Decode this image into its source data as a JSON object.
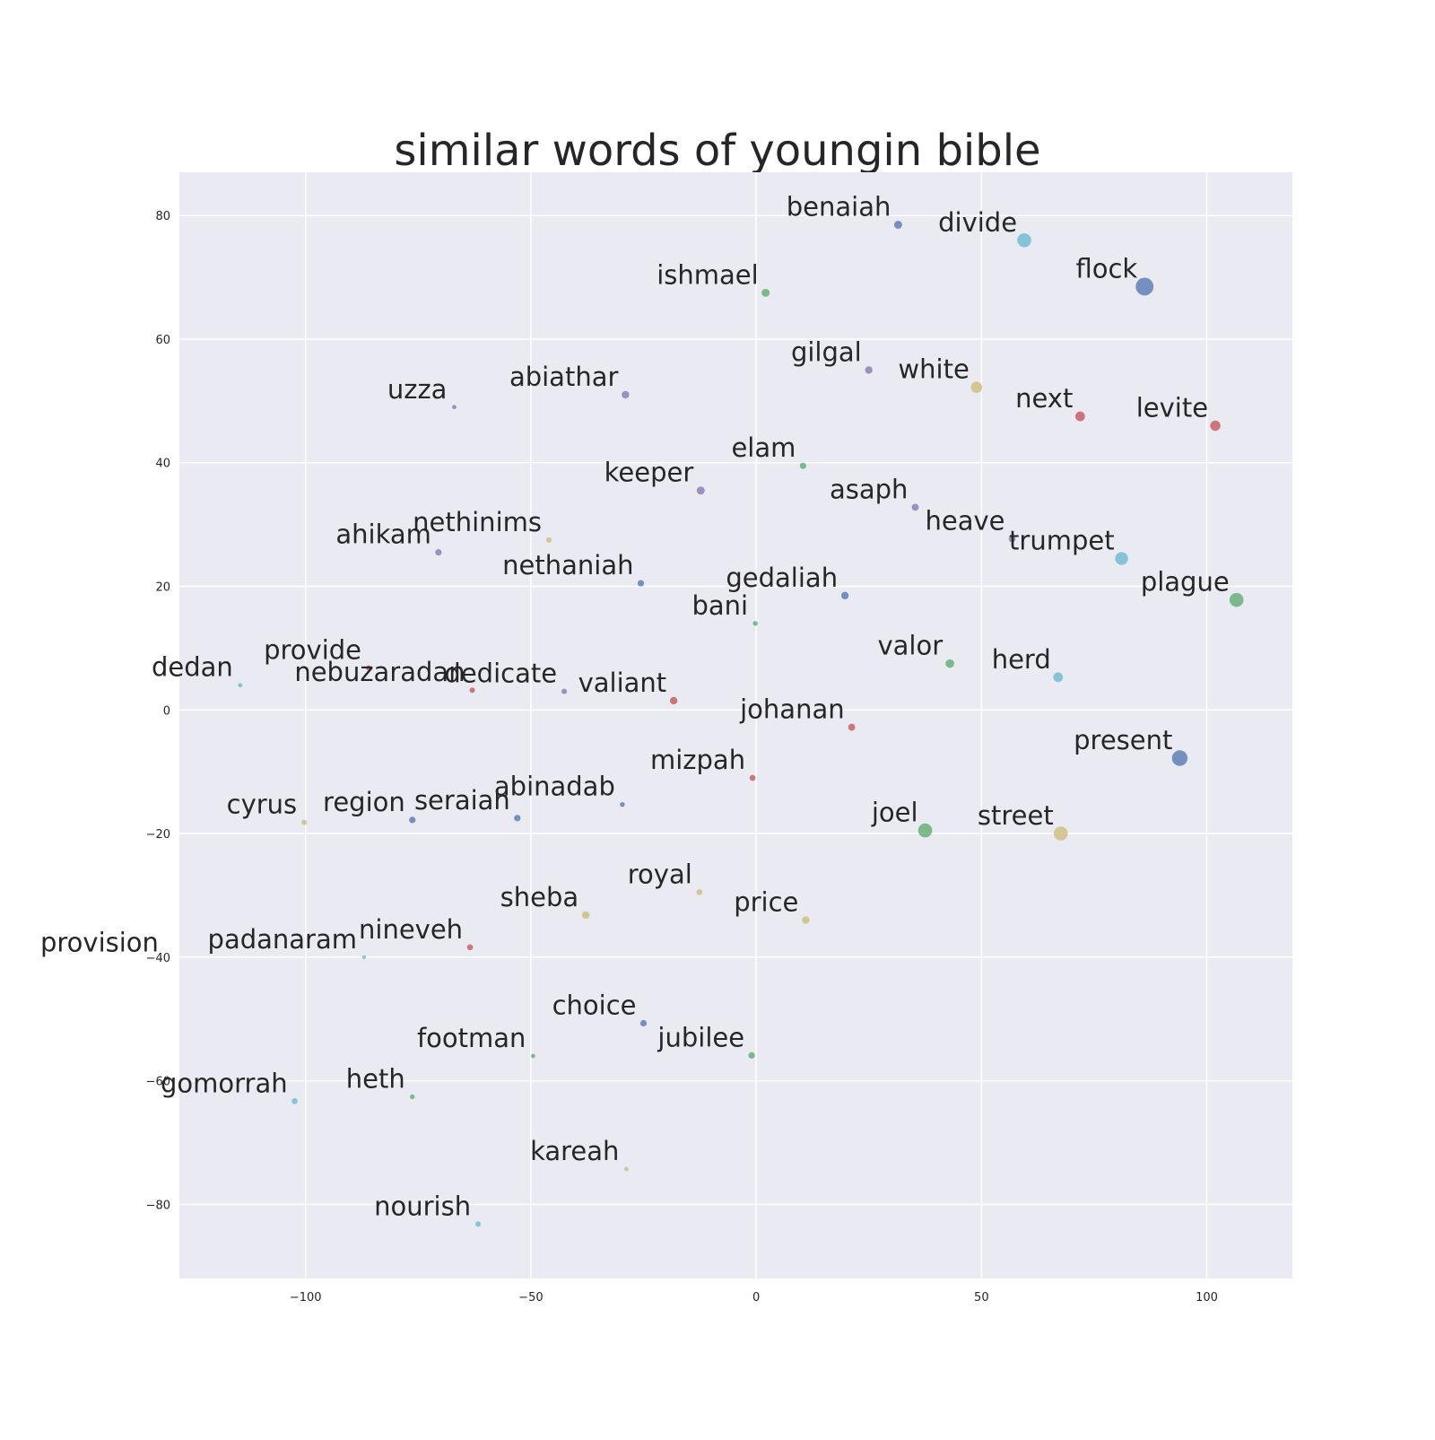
{
  "chart_data": {
    "type": "scatter",
    "title": "similar words of youngin bible",
    "xlabel": "",
    "ylabel": "",
    "xlim": [
      -128,
      119
    ],
    "ylim": [
      -92,
      87
    ],
    "xticks": [
      -100,
      -50,
      0,
      50,
      100
    ],
    "yticks": [
      80,
      60,
      40,
      20,
      0,
      -20,
      -40,
      -60,
      -80
    ],
    "grid": true,
    "background": "#EAEAF2",
    "palette": {
      "blue": "#4C72B0",
      "green": "#55A868",
      "red": "#C44E52",
      "purple": "#8172B2",
      "yellow": "#CCB974",
      "cyan": "#64B5CD"
    },
    "points": [
      {
        "word": "benaiah",
        "x": 31.5,
        "y": 78.5,
        "color": "blue",
        "size": 1.5
      },
      {
        "word": "divide",
        "x": 59.5,
        "y": 76.0,
        "color": "cyan",
        "size": 2.6
      },
      {
        "word": "flock",
        "x": 86.2,
        "y": 68.5,
        "color": "blue",
        "size": 3.3
      },
      {
        "word": "ishmael",
        "x": 2.1,
        "y": 67.5,
        "color": "green",
        "size": 1.5
      },
      {
        "word": "gilgal",
        "x": 25.0,
        "y": 55.0,
        "color": "purple",
        "size": 1.4
      },
      {
        "word": "white",
        "x": 48.9,
        "y": 52.2,
        "color": "yellow",
        "size": 2.1
      },
      {
        "word": "uzza",
        "x": -67.0,
        "y": 49.0,
        "color": "purple",
        "size": 0.8
      },
      {
        "word": "abiathar",
        "x": -29.0,
        "y": 51.0,
        "color": "purple",
        "size": 1.4
      },
      {
        "word": "next",
        "x": 71.9,
        "y": 47.5,
        "color": "red",
        "size": 1.8
      },
      {
        "word": "levite",
        "x": 101.9,
        "y": 46.0,
        "color": "red",
        "size": 1.9
      },
      {
        "word": "elam",
        "x": 10.4,
        "y": 39.5,
        "color": "green",
        "size": 1.2
      },
      {
        "word": "keeper",
        "x": -12.3,
        "y": 35.5,
        "color": "purple",
        "size": 1.5
      },
      {
        "word": "asaph",
        "x": 35.3,
        "y": 32.8,
        "color": "purple",
        "size": 1.3
      },
      {
        "word": "nethinims",
        "x": -46.0,
        "y": 27.5,
        "color": "yellow",
        "size": 1.0
      },
      {
        "word": "heave",
        "x": 56.8,
        "y": 27.7,
        "color": "purple",
        "size": 1.3
      },
      {
        "word": "ahikam",
        "x": -70.5,
        "y": 25.5,
        "color": "purple",
        "size": 1.2
      },
      {
        "word": "trumpet",
        "x": 81.1,
        "y": 24.5,
        "color": "cyan",
        "size": 2.4
      },
      {
        "word": "nethaniah",
        "x": -25.6,
        "y": 20.5,
        "color": "blue",
        "size": 1.2
      },
      {
        "word": "gedaliah",
        "x": 19.7,
        "y": 18.5,
        "color": "blue",
        "size": 1.4
      },
      {
        "word": "plague",
        "x": 106.6,
        "y": 17.8,
        "color": "green",
        "size": 2.6
      },
      {
        "word": "bani",
        "x": -0.2,
        "y": 14.0,
        "color": "green",
        "size": 0.9
      },
      {
        "word": "valor",
        "x": 43.0,
        "y": 7.5,
        "color": "green",
        "size": 1.6
      },
      {
        "word": "herd",
        "x": 67.0,
        "y": 5.3,
        "color": "cyan",
        "size": 1.8
      },
      {
        "word": "provide",
        "x": -86.0,
        "y": 6.8,
        "color": "red",
        "size": 1.0
      },
      {
        "word": "dedan",
        "x": -114.5,
        "y": 4.0,
        "color": "cyan",
        "size": 0.8
      },
      {
        "word": "nebuzaradan",
        "x": -63.0,
        "y": 3.2,
        "color": "red",
        "size": 1.0
      },
      {
        "word": "dedicate",
        "x": -42.6,
        "y": 3.0,
        "color": "purple",
        "size": 1.0
      },
      {
        "word": "valiant",
        "x": -18.3,
        "y": 1.5,
        "color": "red",
        "size": 1.4
      },
      {
        "word": "johanan",
        "x": 21.2,
        "y": -2.8,
        "color": "red",
        "size": 1.3
      },
      {
        "word": "present",
        "x": 94.0,
        "y": -7.8,
        "color": "blue",
        "size": 2.9
      },
      {
        "word": "mizpah",
        "x": -0.8,
        "y": -11.0,
        "color": "red",
        "size": 1.1
      },
      {
        "word": "abinadab",
        "x": -29.7,
        "y": -15.3,
        "color": "blue",
        "size": 0.9
      },
      {
        "word": "cyrus",
        "x": -100.3,
        "y": -18.2,
        "color": "yellow",
        "size": 1.0
      },
      {
        "word": "region",
        "x": -76.3,
        "y": -17.8,
        "color": "blue",
        "size": 1.2
      },
      {
        "word": "seraiah",
        "x": -53.0,
        "y": -17.5,
        "color": "blue",
        "size": 1.2
      },
      {
        "word": "joel",
        "x": 37.5,
        "y": -19.5,
        "color": "green",
        "size": 2.6
      },
      {
        "word": "street",
        "x": 67.6,
        "y": -20.0,
        "color": "yellow",
        "size": 2.6
      },
      {
        "word": "royal",
        "x": -12.6,
        "y": -29.5,
        "color": "yellow",
        "size": 1.1
      },
      {
        "word": "sheba",
        "x": -37.8,
        "y": -33.2,
        "color": "yellow",
        "size": 1.4
      },
      {
        "word": "price",
        "x": 11.0,
        "y": -34.0,
        "color": "yellow",
        "size": 1.4
      },
      {
        "word": "provision",
        "x": -131.0,
        "y": -40.5,
        "color": "yellow",
        "size": 0.0
      },
      {
        "word": "padanaram",
        "x": -87.0,
        "y": -40.0,
        "color": "cyan",
        "size": 0.7
      },
      {
        "word": "nineveh",
        "x": -63.5,
        "y": -38.4,
        "color": "red",
        "size": 1.1
      },
      {
        "word": "choice",
        "x": -25.0,
        "y": -50.7,
        "color": "blue",
        "size": 1.2
      },
      {
        "word": "footman",
        "x": -49.5,
        "y": -56.0,
        "color": "green",
        "size": 0.8
      },
      {
        "word": "jubilee",
        "x": -1.0,
        "y": -55.9,
        "color": "green",
        "size": 1.2
      },
      {
        "word": "gomorrah",
        "x": -102.4,
        "y": -63.3,
        "color": "cyan",
        "size": 1.1
      },
      {
        "word": "heth",
        "x": -76.3,
        "y": -62.6,
        "color": "green",
        "size": 0.9
      },
      {
        "word": "kareah",
        "x": -28.8,
        "y": -74.3,
        "color": "yellow",
        "size": 0.8
      },
      {
        "word": "nourish",
        "x": -61.7,
        "y": -83.2,
        "color": "cyan",
        "size": 1.0
      }
    ]
  }
}
